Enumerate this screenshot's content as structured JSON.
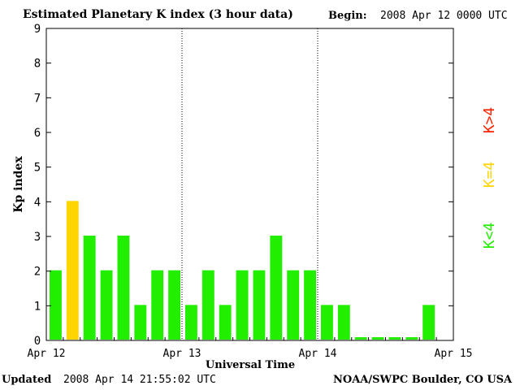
{
  "header": {
    "title": "Estimated Planetary K index (3 hour data)",
    "begin_label": "Begin:",
    "begin_value": "2008 Apr 12 0000 UTC"
  },
  "footer": {
    "updated_label": "Updated",
    "updated_value": "2008 Apr 14 21:55:02 UTC",
    "credit": "NOAA/SWPC Boulder, CO USA"
  },
  "legend": {
    "items": [
      {
        "label": "K<4",
        "color": "#22ee00"
      },
      {
        "label": "K=4",
        "color": "#ffd500"
      },
      {
        "label": "K>4",
        "color": "#ff2200"
      }
    ]
  },
  "chart_data": {
    "type": "bar",
    "title": "Estimated Planetary K index (3 hour data)",
    "xlabel": "Universal Time",
    "ylabel": "Kp index",
    "ylim": [
      0,
      9
    ],
    "yticks": [
      0,
      1,
      2,
      3,
      4,
      5,
      6,
      7,
      8,
      9
    ],
    "xticks": [
      "Apr 12",
      "Apr 13",
      "Apr 14",
      "Apr 15"
    ],
    "interval_hours": 3,
    "series": [
      {
        "values": [
          2,
          4,
          3,
          2,
          3,
          1,
          2,
          2,
          1,
          2,
          1,
          2,
          2,
          3,
          2,
          2,
          1,
          1,
          0,
          0,
          0,
          0,
          1
        ]
      }
    ],
    "colors": {
      "below": "#22ee00",
      "equal": "#ffd500",
      "above": "#ff2200"
    }
  }
}
